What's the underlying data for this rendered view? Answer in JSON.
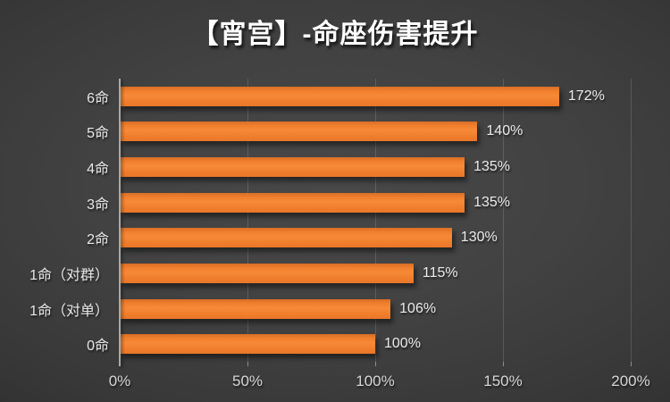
{
  "title": "【宵宫】-命座伤害提升",
  "colors": {
    "bar": "#ED7D31",
    "background_center": "#484848",
    "background_edge": "#1e1e1e",
    "axis_line": "#a9a9a9",
    "gridline": "#565656",
    "category_text": "#e8e8e8",
    "value_text": "#ececec",
    "tick_text": "#d6d6d6",
    "title_text": "#ffffff"
  },
  "chart_data": {
    "type": "bar",
    "orientation": "horizontal",
    "title": "【宵宫】-命座伤害提升",
    "categories": [
      "6命",
      "5命",
      "4命",
      "3命",
      "2命",
      "1命（对群）",
      "1命（对单）",
      "0命"
    ],
    "values": [
      172,
      140,
      135,
      135,
      130,
      115,
      106,
      100
    ],
    "value_labels": [
      "172%",
      "140%",
      "135%",
      "135%",
      "130%",
      "115%",
      "106%",
      "100%"
    ],
    "x_ticks": [
      "0%",
      "50%",
      "100%",
      "150%",
      "200%"
    ],
    "x_tick_values": [
      0,
      50,
      100,
      150,
      200
    ],
    "xlim": [
      0,
      200
    ],
    "xlabel": "",
    "ylabel": "",
    "grid": "vertical",
    "legend": "none"
  }
}
